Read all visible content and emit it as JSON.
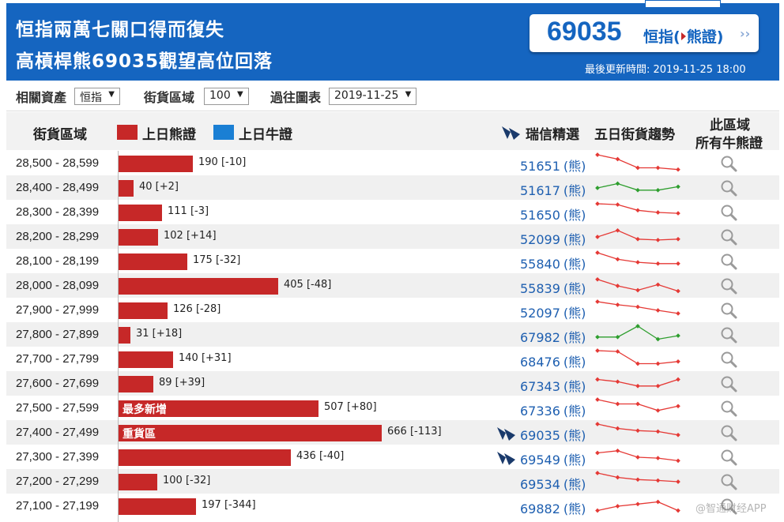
{
  "header": {
    "title_line1": "恒指兩萬七關口得而復失",
    "title_line2": "高槓桿熊69035觀望高位回落",
    "price": "69035",
    "price_label_pre": "恒指(",
    "price_label_mid": "熊證)",
    "chevron": "››",
    "update_label": "最後更新時間: 2019-11-25 18:00",
    "bg_color": "#1565c0"
  },
  "filters": {
    "asset_label": "相關資產",
    "asset_value": "恒指",
    "range_label": "街貨區域",
    "range_value": "100",
    "chart_label": "過往圖表",
    "chart_value": "2019-11-25"
  },
  "table_header": {
    "col_range": "街貨區域",
    "legend_bear": "上日熊證",
    "legend_bull": "上日牛證",
    "col_pick": "瑞信精選",
    "col_trend": "五日街貨趨勢",
    "col_all_line1": "此區域",
    "col_all_line2": "所有牛熊證",
    "bear_color": "#c62828",
    "bull_color": "#1a7fd4"
  },
  "bar_scale_max": 666,
  "rows": [
    {
      "range": "28,500 - 28,599",
      "value": 190,
      "label": "190 [-10]",
      "tag": "",
      "code": "51651",
      "type": "(熊)",
      "pick": false,
      "trend": [
        4,
        3,
        1,
        1,
        0.6
      ]
    },
    {
      "range": "28,400 - 28,499",
      "value": 40,
      "label": "40 [+2]",
      "tag": "",
      "code": "51617",
      "type": "(熊)",
      "pick": false,
      "trend": [
        2,
        3,
        1.5,
        1.5,
        2.3
      ]
    },
    {
      "range": "28,300 - 28,399",
      "value": 111,
      "label": "111 [-3]",
      "tag": "",
      "code": "51650",
      "type": "(熊)",
      "pick": false,
      "trend": [
        4,
        3.8,
        2.5,
        2,
        1.8
      ]
    },
    {
      "range": "28,200 - 28,299",
      "value": 102,
      "label": "102 [+14]",
      "tag": "",
      "code": "52099",
      "type": "(熊)",
      "pick": false,
      "trend": [
        2,
        3.5,
        1.5,
        1.3,
        1.5
      ]
    },
    {
      "range": "28,100 - 28,199",
      "value": 175,
      "label": "175 [-32]",
      "tag": "",
      "code": "55840",
      "type": "(熊)",
      "pick": false,
      "trend": [
        4,
        2.5,
        1.8,
        1.5,
        1.5
      ]
    },
    {
      "range": "28,000 - 28,099",
      "value": 405,
      "label": "405 [-48]",
      "tag": "",
      "code": "55839",
      "type": "(熊)",
      "pick": false,
      "trend": [
        3.5,
        2,
        1,
        2.3,
        0.8
      ]
    },
    {
      "range": "27,900 - 27,999",
      "value": 126,
      "label": "126 [-28]",
      "tag": "",
      "code": "52097",
      "type": "(熊)",
      "pick": false,
      "trend": [
        4,
        3.3,
        2.8,
        2,
        1.3
      ]
    },
    {
      "range": "27,800 - 27,899",
      "value": 31,
      "label": "31 [+18]",
      "tag": "",
      "code": "67982",
      "type": "(熊)",
      "pick": false,
      "trend": [
        1.5,
        1.5,
        4,
        1,
        1.8
      ]
    },
    {
      "range": "27,700 - 27,799",
      "value": 140,
      "label": "140 [+31]",
      "tag": "",
      "code": "68476",
      "type": "(熊)",
      "pick": false,
      "trend": [
        4,
        3.8,
        1,
        1,
        1.5
      ]
    },
    {
      "range": "27,600 - 27,699",
      "value": 89,
      "label": "89 [+39]",
      "tag": "",
      "code": "67343",
      "type": "(熊)",
      "pick": false,
      "trend": [
        3,
        2.5,
        1.5,
        1.5,
        3
      ]
    },
    {
      "range": "27,500 - 27,599",
      "value": 507,
      "label": "507 [+80]",
      "tag": "最多新增",
      "code": "67336",
      "type": "(熊)",
      "pick": false,
      "trend": [
        4,
        3,
        3,
        1.5,
        2.5
      ]
    },
    {
      "range": "27,400 - 27,499",
      "value": 666,
      "label": "666 [-113]",
      "tag": "重貨區",
      "code": "69035",
      "type": "(熊)",
      "pick": true,
      "trend": [
        4,
        3,
        2.5,
        2.3,
        1.5
      ]
    },
    {
      "range": "27,300 - 27,399",
      "value": 436,
      "label": "436 [-40]",
      "tag": "",
      "code": "69549",
      "type": "(熊)",
      "pick": true,
      "trend": [
        3,
        3.5,
        2,
        1.8,
        1.2
      ]
    },
    {
      "range": "27,200 - 27,299",
      "value": 100,
      "label": "100 [-32]",
      "tag": "",
      "code": "69534",
      "type": "(熊)",
      "pick": false,
      "trend": [
        4,
        3,
        2.5,
        2.3,
        2
      ]
    },
    {
      "range": "27,100 - 27,199",
      "value": 197,
      "label": "197 [-344]",
      "tag": "",
      "code": "69882",
      "type": "(熊)",
      "pick": false,
      "trend": [
        1,
        2,
        2.5,
        3,
        1
      ]
    }
  ],
  "watermark": "@智通财经APP",
  "trend_down_color": "#e53935",
  "trend_up_color": "#2e9e2e"
}
